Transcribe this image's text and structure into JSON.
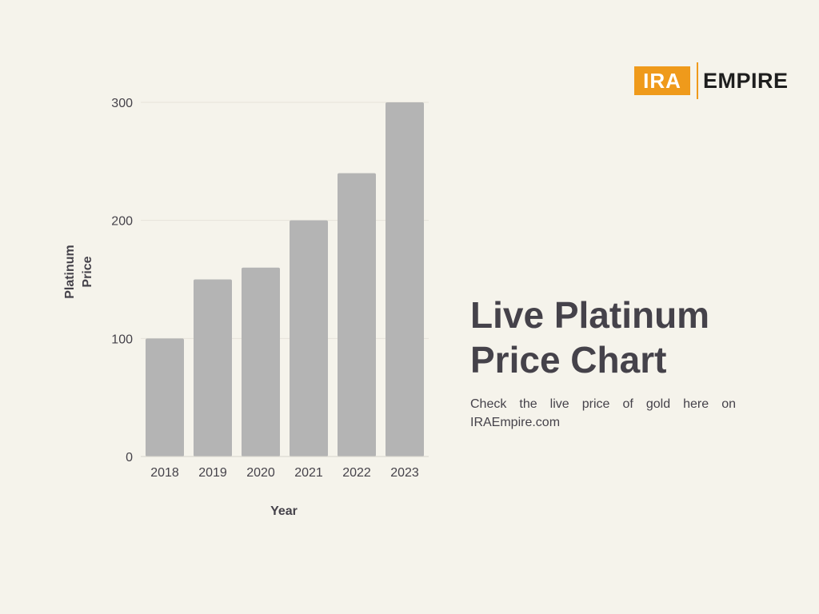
{
  "brand": {
    "logo_left": "IRA",
    "logo_right": "EMPIRE",
    "accent_color": "#ef9a1b"
  },
  "headline": {
    "line1": "Live Platinum",
    "line2": "Price Chart"
  },
  "subtext": "Check the live price of gold here on IRAEmpire.com",
  "chart_data": {
    "type": "bar",
    "categories": [
      "2018",
      "2019",
      "2020",
      "2021",
      "2022",
      "2023"
    ],
    "values": [
      100,
      150,
      160,
      200,
      240,
      300
    ],
    "yticks": [
      0,
      100,
      200,
      300
    ],
    "ylim": [
      0,
      300
    ],
    "xlabel": "Year",
    "ylabel": [
      "Platinum",
      "Price"
    ],
    "grid": true,
    "bar_color": "#b4b4b4"
  }
}
